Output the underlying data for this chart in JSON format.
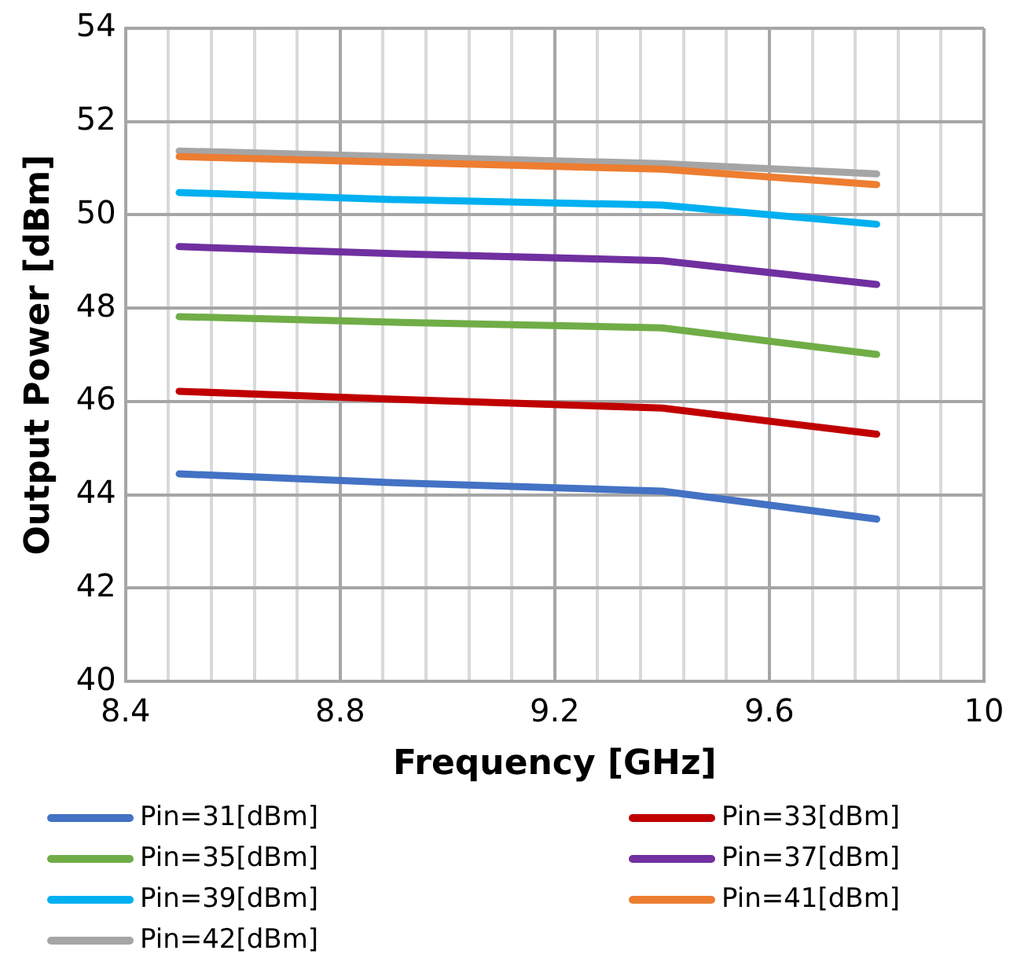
{
  "chart_data": {
    "type": "line",
    "xlabel": "Frequency [GHz]",
    "ylabel": "Output Power [dBm]",
    "x": [
      8.5,
      8.9,
      9.4,
      9.8
    ],
    "xlim": [
      8.4,
      10
    ],
    "xticks": [
      8.4,
      {
        "value": 8.48,
        "label": null
      },
      {
        "value": 8.56,
        "label": null
      },
      {
        "value": 8.64,
        "label": null
      },
      {
        "value": 8.72,
        "label": null
      },
      8.8,
      {
        "value": 8.88,
        "label": null
      },
      {
        "value": 8.96,
        "label": null
      },
      {
        "value": 9.04,
        "label": null
      },
      {
        "value": 9.12,
        "label": null
      },
      9.2,
      {
        "value": 9.28,
        "label": null
      },
      {
        "value": 9.36,
        "label": null
      },
      {
        "value": 9.44,
        "label": null
      },
      {
        "value": 9.52,
        "label": null
      },
      9.6,
      {
        "value": 9.68,
        "label": null
      },
      {
        "value": 9.76,
        "label": null
      },
      {
        "value": 9.84,
        "label": null
      },
      {
        "value": 9.92,
        "label": null
      },
      10
    ],
    "ylim": [
      40,
      54
    ],
    "yticks": [
      40,
      42,
      44,
      46,
      48,
      50,
      52,
      54
    ],
    "grid": true,
    "legend": "bottom",
    "marker": "none",
    "line_style": "solid",
    "series": [
      {
        "name": "Pin=31[dBm]",
        "color": "#4472c4",
        "values": [
          44.45,
          44.26,
          44.08,
          43.48
        ]
      },
      {
        "name": "Pin=33[dBm]",
        "color": "#c00000",
        "values": [
          46.22,
          46.05,
          45.86,
          45.3
        ]
      },
      {
        "name": "Pin=35[dBm]",
        "color": "#70ad47",
        "values": [
          47.82,
          47.7,
          47.58,
          47.01
        ]
      },
      {
        "name": "Pin=37[dBm]",
        "color": "#7030a0",
        "values": [
          49.32,
          49.17,
          49.02,
          48.51
        ]
      },
      {
        "name": "Pin=39[dBm]",
        "color": "#00b0f0",
        "values": [
          50.48,
          50.33,
          50.21,
          49.8
        ]
      },
      {
        "name": "Pin=41[dBm]",
        "color": "#ed7d31",
        "values": [
          51.25,
          51.13,
          50.98,
          50.65
        ]
      },
      {
        "name": "Pin=42[dBm]",
        "color": "#a5a5a5",
        "values": [
          51.37,
          51.25,
          51.1,
          50.88
        ]
      }
    ]
  }
}
